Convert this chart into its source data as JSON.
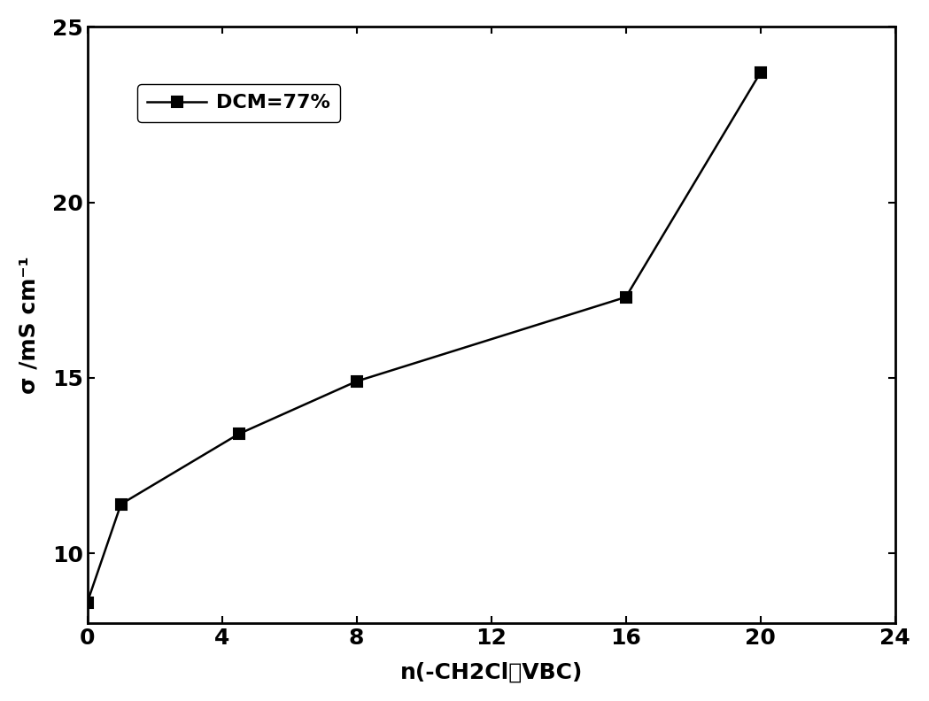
{
  "x": [
    0,
    1,
    4.5,
    8,
    16,
    20
  ],
  "y": [
    8.6,
    11.4,
    13.4,
    14.9,
    17.3,
    23.7
  ],
  "line_color": "#000000",
  "marker": "s",
  "marker_size": 9,
  "marker_facecolor": "#000000",
  "marker_edgecolor": "#000000",
  "line_width": 1.8,
  "xlabel": "n(-CH2Cl：VBC)",
  "ylabel": "σ /mS cm⁻¹",
  "xlim": [
    0,
    24
  ],
  "ylim": [
    8,
    25
  ],
  "xticks": [
    0,
    4,
    8,
    12,
    16,
    20,
    24
  ],
  "yticks": [
    10,
    15,
    20,
    25
  ],
  "legend_label": "DCM=77%",
  "background_color": "#ffffff",
  "axes_background": "#ffffff",
  "label_fontsize": 18,
  "tick_fontsize": 18,
  "legend_fontsize": 16
}
